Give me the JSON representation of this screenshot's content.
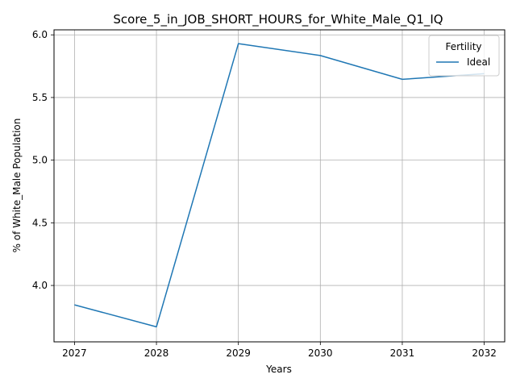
{
  "chart_data": {
    "type": "line",
    "title": "Score_5_in_JOB_SHORT_HOURS_for_White_Male_Q1_IQ",
    "xlabel": "Years",
    "ylabel": "% of White_Male Population",
    "x": [
      2027,
      2028,
      2029,
      2030,
      2031,
      2032
    ],
    "xticks": [
      "2027",
      "2028",
      "2029",
      "2030",
      "2031",
      "2032"
    ],
    "yticks": [
      "4.0",
      "4.5",
      "5.0",
      "5.5",
      "6.0"
    ],
    "xlim": [
      2026.75,
      2032.25
    ],
    "ylim": [
      3.55,
      6.04
    ],
    "grid": true,
    "legend": {
      "title": "Fertility",
      "position": "top-right"
    },
    "series": [
      {
        "name": "Ideal",
        "color": "#1f77b4",
        "values": [
          3.845,
          3.67,
          5.93,
          5.835,
          5.645,
          5.69
        ]
      }
    ]
  }
}
